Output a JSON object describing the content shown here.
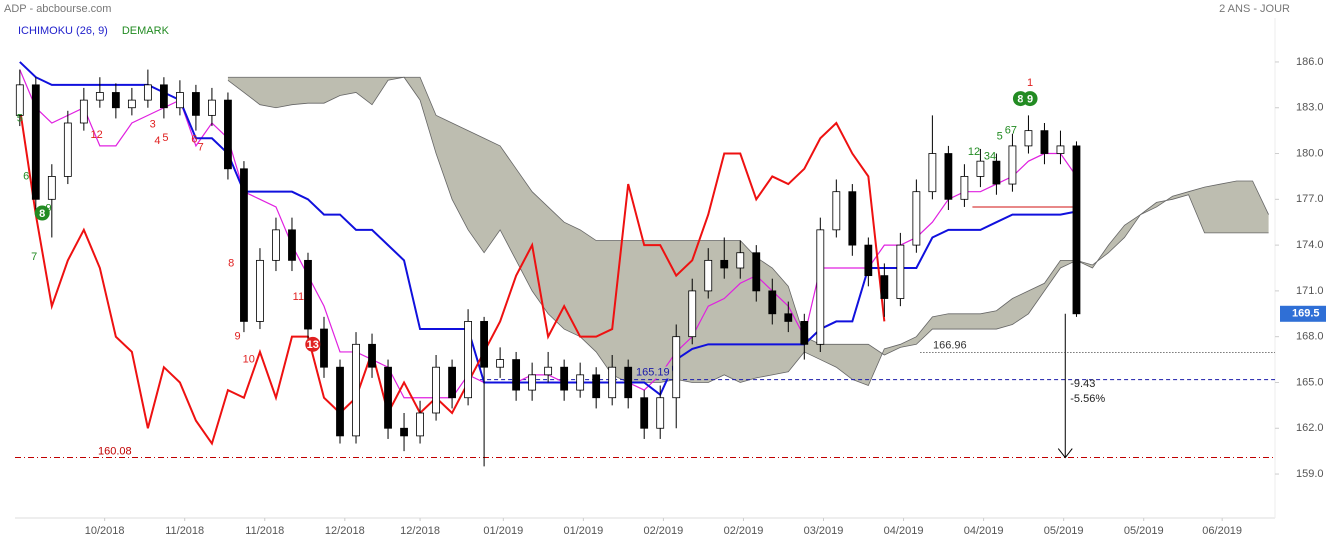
{
  "chart_data": {
    "type": "candlestick",
    "title": "ADP - abcbourse.com",
    "period": "2 ANS - JOUR",
    "indicator_labels": [
      {
        "text": "ICHIMOKU (26, 9)",
        "color": "#2222cc"
      },
      {
        "text": "DEMARK",
        "color": "#228b22"
      }
    ],
    "up_color": "#ffffff",
    "down_color": "#000000",
    "open": [
      182.5,
      184.5,
      177,
      178.5,
      182,
      183.5,
      184,
      183,
      183.5,
      184.5,
      183,
      184,
      182.5,
      183.5,
      179,
      169,
      173,
      175,
      173,
      168.5,
      166,
      161.5,
      167.5,
      166,
      162,
      161.5,
      163,
      166,
      164,
      169,
      166,
      166.5,
      164.5,
      165.5,
      166,
      164.5,
      165.5,
      164,
      166,
      164,
      162,
      164,
      168,
      171,
      173,
      172.5,
      173.5,
      171,
      169.5,
      169,
      167.5,
      175,
      177.5,
      174,
      172,
      170.5,
      174,
      177.5,
      180,
      177,
      178.5,
      179.5,
      178,
      180.5,
      181.5,
      180,
      180.5
    ],
    "high": [
      185.5,
      185,
      179.3,
      182.8,
      184.3,
      185,
      184.6,
      184.3,
      185.5,
      185,
      184.8,
      184.5,
      184.3,
      184,
      179.5,
      173.8,
      175.8,
      175.8,
      173.5,
      169.3,
      166.5,
      168.3,
      168.2,
      166.5,
      163,
      163.8,
      166.8,
      166.5,
      169.8,
      169.3,
      167.3,
      167,
      166.3,
      167,
      166.5,
      166.3,
      166,
      166.8,
      166.5,
      164.5,
      164.8,
      168.8,
      171.8,
      173.8,
      174.5,
      174.3,
      174,
      171.8,
      170.3,
      169.5,
      175.8,
      178.3,
      178,
      174.5,
      172.8,
      174.8,
      178.3,
      182.5,
      180.5,
      179.3,
      180.3,
      180,
      181.3,
      182.5,
      182,
      181.5,
      180.8
    ],
    "low": [
      181.8,
      176.2,
      174.5,
      178,
      181.5,
      183,
      182.3,
      182.5,
      183,
      182.3,
      182.5,
      181.5,
      181.8,
      178.3,
      168.3,
      168.5,
      172.3,
      172.3,
      167.8,
      165.3,
      161,
      161,
      165.3,
      161.3,
      160.5,
      161,
      162.5,
      163.3,
      163.5,
      159.5,
      165.3,
      163.8,
      163.8,
      165,
      163.8,
      164,
      163.3,
      163.5,
      163.3,
      161.3,
      161.3,
      162,
      167.5,
      170.5,
      171.8,
      171.8,
      170.3,
      168.8,
      168.3,
      166.5,
      167,
      174.5,
      173.3,
      171.3,
      169.3,
      170,
      173.5,
      177,
      176.3,
      176.5,
      177.8,
      177.3,
      177.5,
      180,
      179.3,
      179.3,
      169.3
    ],
    "close": [
      184.5,
      177,
      178.5,
      182,
      183.5,
      184,
      183,
      183.5,
      184.5,
      183,
      184,
      182.5,
      183.5,
      179,
      169,
      173,
      175,
      173,
      168.5,
      166,
      161.5,
      167.5,
      166,
      162,
      161.5,
      163,
      166,
      164,
      169,
      166,
      166.5,
      164.5,
      165.5,
      166,
      164.5,
      165.5,
      164,
      166,
      164,
      162,
      164,
      168,
      171,
      173,
      172.5,
      173.5,
      171,
      169.5,
      169,
      167.5,
      175,
      177.5,
      174,
      172,
      170.5,
      174,
      177.5,
      180,
      177,
      178.5,
      179.5,
      178,
      180.5,
      181.5,
      180,
      180.5,
      169.5
    ],
    "series": [
      {
        "color": "#e020e0",
        "values": [
          185.5,
          183,
          182,
          182.5,
          183,
          180.5,
          180.5,
          182,
          182.5,
          183,
          183.5,
          180.5,
          182,
          181,
          177.5,
          177,
          176.5,
          174,
          172,
          170,
          167,
          167,
          166.5,
          166,
          164,
          164,
          164,
          164,
          165.5,
          165,
          165,
          165,
          165.5,
          165.5,
          165,
          165,
          165,
          165,
          165,
          164.5,
          165.5,
          167,
          168,
          170,
          170.5,
          171.5,
          172,
          171,
          170,
          168,
          172.5,
          172.5,
          172.5,
          172.5,
          174,
          174,
          174.5,
          175.5,
          177,
          177.5,
          177.5,
          178,
          178.5,
          179.5,
          180,
          180,
          178.5,
          null,
          null,
          null,
          null,
          null,
          null,
          null,
          null,
          null,
          null,
          null,
          null
        ]
      },
      {
        "color": "#1010dd",
        "values": [
          186,
          185,
          184.5,
          184.5,
          184.5,
          184.5,
          184.5,
          184.5,
          184.5,
          184,
          183.5,
          181,
          181,
          180,
          177.5,
          177.5,
          177.5,
          177.5,
          177,
          176,
          176,
          175,
          175,
          174,
          173,
          168.5,
          168.5,
          168.5,
          168.5,
          165,
          165,
          165,
          165,
          165,
          165,
          165,
          165,
          165,
          165,
          165,
          164.2,
          166.5,
          167.2,
          167.5,
          167.5,
          167.5,
          167.5,
          167.5,
          167.5,
          167.5,
          168.5,
          169,
          169,
          172.5,
          172.5,
          172.5,
          172.5,
          174.5,
          175,
          175,
          175,
          175.5,
          176,
          176,
          176,
          176,
          176.2,
          null,
          null,
          null,
          null,
          null,
          null,
          null,
          null,
          null,
          null,
          null,
          null
        ]
      },
      {
        "color": "#ee1111",
        "values": [
          183,
          176,
          170,
          173,
          175,
          172.5,
          168,
          167,
          162,
          166,
          165,
          162.5,
          161,
          164.5,
          164,
          167,
          164,
          168,
          168,
          164,
          163,
          164,
          167,
          163,
          165,
          163,
          164,
          163,
          165,
          167,
          169,
          172,
          174,
          168,
          170,
          168,
          168,
          168.5,
          178,
          174,
          174,
          172,
          173,
          176,
          180,
          180,
          177,
          178.5,
          178,
          179,
          181,
          182,
          180,
          178.5,
          169,
          null,
          null,
          null,
          null,
          null,
          null,
          null,
          null,
          null,
          null,
          null,
          null,
          null,
          null,
          null,
          null,
          null,
          null,
          null
        ]
      }
    ],
    "cloud": {
      "color": "#bdbdb0",
      "span_a": [
        null,
        null,
        null,
        null,
        null,
        null,
        null,
        null,
        null,
        null,
        null,
        null,
        null,
        185,
        185,
        185,
        185,
        185,
        185,
        185,
        185,
        185,
        185,
        185,
        185,
        185,
        182.5,
        182,
        181.5,
        181,
        180.5,
        179,
        177.5,
        176.5,
        175.5,
        175,
        174.3,
        174.3,
        174.3,
        174.3,
        174.3,
        174.3,
        174.3,
        174.3,
        174.3,
        174.3,
        173.2,
        172.5,
        171.3,
        168,
        167.5,
        167.5,
        167.5,
        167.5,
        166.8,
        167.3,
        167.5,
        168.5,
        168.5,
        168.5,
        168.5,
        168.5,
        168.8,
        169.5,
        171,
        172.5,
        173,
        172.7,
        173.5,
        174.5,
        176,
        176.5,
        177.2,
        177.5,
        177.8,
        178,
        178.2,
        178.2,
        176
      ],
      "span_b": [
        null,
        null,
        null,
        null,
        null,
        null,
        null,
        null,
        null,
        null,
        null,
        null,
        null,
        184.8,
        184,
        183.2,
        183,
        183.2,
        183.3,
        183.3,
        183.8,
        184,
        183.2,
        184.8,
        185,
        183.5,
        180,
        177,
        175,
        173.5,
        175,
        173,
        171,
        169.5,
        168.5,
        168,
        167,
        165.5,
        165,
        165,
        165,
        165.2,
        165,
        165,
        165.5,
        165,
        165.3,
        165.5,
        165.7,
        167,
        166.5,
        166,
        165.2,
        164.8,
        167.2,
        167.5,
        168,
        169.3,
        169.5,
        169.5,
        169.5,
        169.7,
        170.5,
        171,
        171.5,
        173,
        173,
        172.5,
        174,
        175.3,
        176,
        176.8,
        177,
        177.3,
        174.8,
        174.8,
        174.8,
        174.8,
        174.8
      ]
    },
    "levels": [
      {
        "value": 160.08,
        "color": "#c00000",
        "style": "dashdot",
        "from": -0.3,
        "to": 78.4
      },
      {
        "value": 166.96,
        "color": "#333333",
        "style": "dotted",
        "from": 56.25,
        "to": 78.4
      },
      {
        "value": 165.19,
        "color": "#1a1aaa",
        "style": "dashed",
        "from": 28.75,
        "to": 78.4
      },
      {
        "value": 176.5,
        "color": "#d01010",
        "style": "solid",
        "from": 59.5,
        "to": 66
      }
    ],
    "last": 169.5,
    "last_color": "#2f6fd6",
    "measure": {
      "x": 65.3,
      "labels": [
        "-9.43",
        "-5.56%"
      ]
    },
    "demark": [
      {
        "x": 0,
        "y": 182.3,
        "text": "5",
        "color": "#228b22"
      },
      {
        "x": 0.4,
        "y": 178.5,
        "text": "6",
        "color": "#228b22"
      },
      {
        "x": 0.9,
        "y": 173.2,
        "text": "7",
        "color": "#228b22"
      },
      {
        "x": 1.4,
        "y": 176.1,
        "text": "8",
        "color": "#228b22",
        "circle": true
      },
      {
        "x": 1.8,
        "y": 176.4,
        "text": "9",
        "color": "#228b22"
      },
      {
        "x": 4.8,
        "y": 181.2,
        "text": "12",
        "color": "#e02020"
      },
      {
        "x": 8.3,
        "y": 181.9,
        "text": "3",
        "color": "#e02020"
      },
      {
        "x": 8.6,
        "y": 180.8,
        "text": "4",
        "color": "#e02020"
      },
      {
        "x": 9.1,
        "y": 181.0,
        "text": "5",
        "color": "#e02020"
      },
      {
        "x": 10.9,
        "y": 180.9,
        "text": "6",
        "color": "#e02020"
      },
      {
        "x": 11.3,
        "y": 180.4,
        "text": "7",
        "color": "#e02020"
      },
      {
        "x": 13.2,
        "y": 172.8,
        "text": "8",
        "color": "#e02020"
      },
      {
        "x": 13.6,
        "y": 168.0,
        "text": "9",
        "color": "#e02020"
      },
      {
        "x": 14.3,
        "y": 166.5,
        "text": "10",
        "color": "#e02020"
      },
      {
        "x": 17.4,
        "y": 170.6,
        "text": "11",
        "color": "#e02020"
      },
      {
        "x": 18.3,
        "y": 167.5,
        "text": "13",
        "color": "#e02020",
        "circle": true
      },
      {
        "x": 59.6,
        "y": 180.1,
        "text": "12",
        "color": "#228b22"
      },
      {
        "x": 60.6,
        "y": 179.8,
        "text": "34",
        "color": "#228b22"
      },
      {
        "x": 61.2,
        "y": 181.1,
        "text": "5",
        "color": "#228b22"
      },
      {
        "x": 61.9,
        "y": 181.5,
        "text": "67",
        "color": "#228b22"
      },
      {
        "x": 62.5,
        "y": 183.6,
        "text": "8",
        "color": "#228b22",
        "circle": true
      },
      {
        "x": 63.1,
        "y": 183.6,
        "text": "9",
        "color": "#228b22",
        "circle": true
      },
      {
        "x": 63.1,
        "y": 184.6,
        "text": "1",
        "color": "#e02020"
      }
    ],
    "xlim": [
      -0.3,
      78.4
    ],
    "xticks": [
      {
        "value": 5.3,
        "label": "10/2018"
      },
      {
        "value": 10.3,
        "label": "11/2018"
      },
      {
        "value": 15.3,
        "label": "11/2018"
      },
      {
        "value": 20.3,
        "label": "12/2018"
      },
      {
        "value": 25,
        "label": "12/2018"
      },
      {
        "value": 30.2,
        "label": "01/2019"
      },
      {
        "value": 35.2,
        "label": "01/2019"
      },
      {
        "value": 40.2,
        "label": "02/2019"
      },
      {
        "value": 45.2,
        "label": "02/2019"
      },
      {
        "value": 50.2,
        "label": "03/2019"
      },
      {
        "value": 55.2,
        "label": "04/2019"
      },
      {
        "value": 60.2,
        "label": "04/2019"
      },
      {
        "value": 65.2,
        "label": "05/2019"
      },
      {
        "value": 70.2,
        "label": "05/2019"
      },
      {
        "value": 75.1,
        "label": "06/2019"
      }
    ],
    "ylim": [
      156.12,
      188.88
    ],
    "yticks": [
      {
        "value": 159,
        "label": "159.0"
      },
      {
        "value": 162,
        "label": "162.0"
      },
      {
        "value": 165,
        "label": "165.0"
      },
      {
        "value": 168,
        "label": "168.0"
      },
      {
        "value": 171,
        "label": "171.0"
      },
      {
        "value": 174,
        "label": "174.0"
      },
      {
        "value": 177,
        "label": "177.0"
      },
      {
        "value": 180,
        "label": "180.0"
      },
      {
        "value": 183,
        "label": "183.0"
      },
      {
        "value": 186,
        "label": "186.0"
      }
    ]
  }
}
